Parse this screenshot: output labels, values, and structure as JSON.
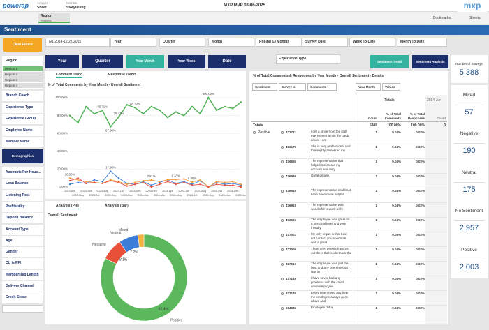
{
  "header": {
    "logo": "powerap",
    "tabs": [
      {
        "label": "Analyze",
        "sub": "Sheet"
      },
      {
        "label": "Narrate",
        "sub": "Storytelling"
      }
    ],
    "app_title": "MXP MVP 03-06-2025",
    "bookmarks": "Bookmarks",
    "sheets": "Sheets",
    "brand": "mxp"
  },
  "selection": {
    "field": "Region",
    "value": "Region 1"
  },
  "sheet_title": "Sentiment",
  "filters": {
    "clear": "Clear Filters",
    "date_range": "6/1/2014-12/27/2015",
    "fields": [
      "Year",
      "Quarter",
      "Month",
      "Rolling 13 Months",
      "Survey Date",
      "Week To Date",
      "Month To Date"
    ]
  },
  "period_buttons": [
    {
      "label": "Year",
      "active": false
    },
    {
      "label": "Quarter",
      "active": false
    },
    {
      "label": "Year Month",
      "active": true
    },
    {
      "label": "Year Week",
      "active": false
    },
    {
      "label": "Date",
      "active": false
    }
  ],
  "experience_type": "Experience Type",
  "views": [
    {
      "label": "Sentiment Trend",
      "active": true
    },
    {
      "label": "Sentiment Analysis",
      "active": false
    }
  ],
  "kpis": {
    "surveys": {
      "label": "Number of Surveys",
      "value": "5,388"
    },
    "items": [
      {
        "label": "Mixed",
        "value": "57"
      },
      {
        "label": "Negative",
        "value": "190"
      },
      {
        "label": "Neutral",
        "value": "175"
      },
      {
        "label": "No Sentiment",
        "value": "2,957"
      },
      {
        "label": "Positive",
        "value": "2,003"
      }
    ]
  },
  "sidebar": {
    "region": {
      "title": "Region",
      "items": [
        "Region 1",
        "Region 2",
        "Region 3",
        "Region 4"
      ]
    },
    "fields": [
      "Branch Coach",
      "Experience Type",
      "Experience Group",
      "Employee Name",
      "Member Name"
    ],
    "demographics": "Demographics",
    "demo_fields": [
      "Accounts Per Hous...",
      "Loan Balance",
      "Listening Post",
      "Profitability",
      "Deposit Balance",
      "Account Type",
      "Age",
      "Gender",
      "CU is PFI",
      "Membership Length",
      "Delivery Channel",
      "Credit Score"
    ]
  },
  "trend_chart": {
    "type": "line",
    "tabs": [
      "Comment Trend",
      "Response Trend"
    ],
    "title": "% of Total Comments by Year Month - Overall Sentiment",
    "categories": [
      "2023-Apr",
      "2023-May",
      "2023-Jun",
      "2023-Jul",
      "2023-Aug",
      "2023-Sep",
      "2023-Oct",
      "2023-Nov",
      "2023-Dec",
      "2024-Jan",
      "2024-Feb",
      "2024-Mar",
      "2024-Apr",
      "2024-May",
      "2024-Jun",
      "2024-Jul",
      "2024-Aug",
      "2024-Sep",
      "2024-Oct",
      "2024-Nov",
      "2024-Dec",
      "2025-Jan"
    ],
    "ylim": [
      0,
      100
    ],
    "yticks": [
      {
        "value": 0,
        "label": "0.00%"
      },
      {
        "value": 20,
        "label": "20.00%"
      },
      {
        "value": 40,
        "label": "40.00%"
      },
      {
        "value": 60,
        "label": "60.00%"
      },
      {
        "value": 80,
        "label": "80.00%"
      },
      {
        "value": 100,
        "label": "100.00%"
      }
    ],
    "grid": true,
    "series": [
      {
        "color": "#4caf50",
        "values": [
          80,
          72,
          90,
          82,
          85.71,
          67.5,
          78.43,
          92,
          88.79,
          82,
          90,
          86,
          78,
          84,
          80,
          90,
          82,
          100,
          86,
          90,
          88,
          95
        ],
        "value_labels": [
          null,
          null,
          null,
          null,
          "85.71%",
          "67.50%",
          "78.43%",
          null,
          "88.79%",
          null,
          null,
          null,
          null,
          null,
          null,
          null,
          null,
          "100.00%",
          null,
          null,
          null,
          null
        ]
      },
      {
        "color": "#3b7dd8",
        "values": [
          3,
          5,
          4,
          8,
          6,
          17.5,
          10,
          4,
          3,
          6,
          2,
          5,
          8,
          4,
          6,
          3,
          7,
          0,
          5,
          3,
          4,
          2
        ],
        "value_labels": [
          null,
          null,
          null,
          null,
          null,
          "17.50%",
          null,
          null,
          null,
          null,
          null,
          null,
          null,
          null,
          null,
          null,
          null,
          null,
          null,
          null,
          null,
          null
        ]
      },
      {
        "color": "#f39c3c",
        "values": [
          10,
          8,
          6,
          5,
          4,
          8,
          6,
          3,
          5,
          7,
          7.81,
          6,
          8,
          8.33,
          9,
          5.45,
          8,
          0,
          6,
          5,
          6,
          3
        ],
        "value_labels": [
          "10.00%",
          null,
          null,
          null,
          null,
          null,
          null,
          null,
          null,
          null,
          "7.81%",
          null,
          null,
          "8.33%",
          null,
          "5.45%",
          null,
          null,
          null,
          null,
          null,
          null
        ]
      },
      {
        "color": "#e74c3c",
        "values": [
          7,
          10,
          4,
          5,
          4,
          7,
          5,
          1,
          3,
          5,
          0,
          3,
          6,
          3,
          5,
          2,
          3,
          0,
          3,
          2,
          2,
          0
        ]
      }
    ]
  },
  "sentiment_chart": {
    "type": "pie",
    "tabs": [
      "Analysis (Pie)",
      "Analysis (Bar)"
    ],
    "title": "Overall Sentiment",
    "categories": [
      "Positive",
      "Negative",
      "Neutral",
      "Mixed"
    ],
    "values": [
      82.4,
      8.1,
      7.2,
      2.3
    ],
    "value_labels": [
      "82.4%",
      "8.1%",
      "7.2%",
      null
    ],
    "colors": [
      "#5cb85c",
      "#e8503a",
      "#3b7dd8",
      "#f5b041"
    ]
  },
  "table": {
    "title": "% of Total Comments & Responses by Year Month - Overall Sentiment - Details",
    "filters": [
      "Sentiment",
      "Survey Id",
      "Comments"
    ],
    "pivot": [
      "Year Month",
      "Values"
    ],
    "columns": {
      "totals": "Totals",
      "period": "2014-Jun",
      "count": "Count",
      "pct_comments": "% of Total Comments",
      "pct_responses": "% of Total Responses",
      "period_count": "Count"
    },
    "totals_row": {
      "label": "Totals",
      "count": "5388",
      "pct_comments": "100.00%",
      "pct_responses": "100.00%",
      "period_count": "0"
    },
    "group": "Positive",
    "rows": [
      {
        "id": "477731",
        "comment": "I get a smile from the staff every time I am in the credit union. I am",
        "count": "1",
        "pct_comments": "0.04%",
        "pct_responses": "0.02%"
      },
      {
        "id": "476179",
        "comment": "She is very professional and thoroughly answered my",
        "count": "1",
        "pct_comments": "0.04%",
        "pct_responses": "0.02%"
      },
      {
        "id": "476886",
        "comment": "The representative that helped me create my account was very",
        "count": "1",
        "pct_comments": "0.04%",
        "pct_responses": "0.02%"
      },
      {
        "id": "476989",
        "comment": "Great people.",
        "count": "1",
        "pct_comments": "0.04%",
        "pct_responses": "0.02%"
      },
      {
        "id": "476916",
        "comment": "The representative could not have been more helpful.",
        "count": "1",
        "pct_comments": "0.04%",
        "pct_responses": "0.02%"
      },
      {
        "id": "476963",
        "comment": "The representative was wonderful to work with!",
        "count": "1",
        "pct_comments": "0.04%",
        "pct_responses": "0.02%"
      },
      {
        "id": "476965",
        "comment": "The employee was great on a personal level and very friendly. I",
        "count": "1",
        "pct_comments": "0.04%",
        "pct_responses": "0.02%"
      },
      {
        "id": "477001",
        "comment": "My only regret is that I did not contact you sooner! It was a great",
        "count": "1",
        "pct_comments": "0.04%",
        "pct_responses": "0.02%"
      },
      {
        "id": "477006",
        "comment": "There aren't enough words out there that could thank the",
        "count": "1",
        "pct_comments": "0.04%",
        "pct_responses": "0.02%"
      },
      {
        "id": "477010",
        "comment": "The employee was just the best and any one else that I was in",
        "count": "1",
        "pct_comments": "0.04%",
        "pct_responses": "0.02%"
      },
      {
        "id": "477149",
        "comment": "I have never had any problems with the credit union employee",
        "count": "1",
        "pct_comments": "0.04%",
        "pct_responses": "0.02%"
      },
      {
        "id": "477170",
        "comment": "Every time I need any help the employee always goes above and",
        "count": "1",
        "pct_comments": "0.04%",
        "pct_responses": "0.02%"
      },
      {
        "id": "514636",
        "comment": "Employee did a",
        "count": "1",
        "pct_comments": "0.04%",
        "pct_responses": "0.02%"
      }
    ]
  }
}
